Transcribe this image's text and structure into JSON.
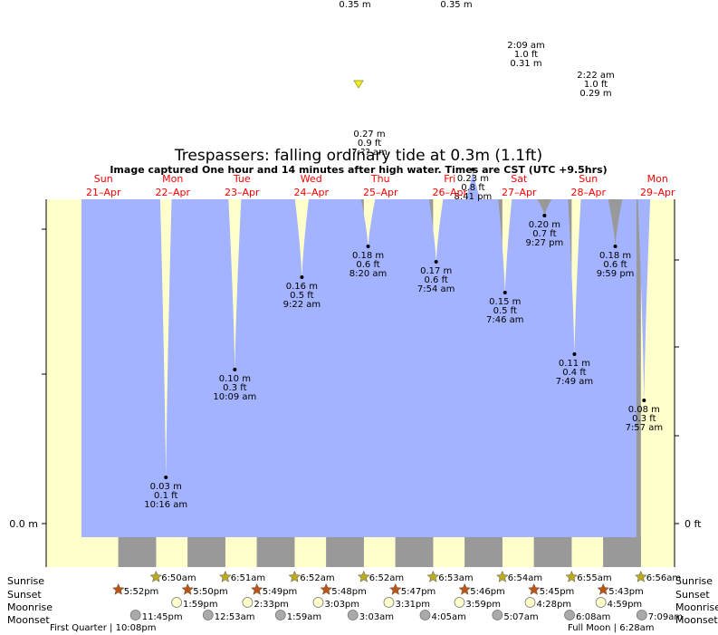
{
  "title": "Trespassers: falling  ordinary tide at 0.3m (1.1ft)",
  "subtitle": "Image captured One hour and 14 minutes after high water. Times are CST (UTC +9.5hrs)",
  "colors": {
    "water": "#a3b3ff",
    "day": "#ffffcc",
    "night": "#999999",
    "day_label": "#ff0000",
    "sun_star": "#bbaa22",
    "sunset_star": "#bb5511",
    "moonrise_disc": "#ffffcc",
    "moonset_disc": "#aaaaaa"
  },
  "chart_data": {
    "type": "area",
    "days": [
      {
        "dow": "Sun",
        "date": "21–Apr"
      },
      {
        "dow": "Mon",
        "date": "22–Apr"
      },
      {
        "dow": "Tue",
        "date": "23–Apr"
      },
      {
        "dow": "Wed",
        "date": "24–Apr"
      },
      {
        "dow": "Thu",
        "date": "25–Apr"
      },
      {
        "dow": "Fri",
        "date": "26–Apr"
      },
      {
        "dow": "Sat",
        "date": "27–Apr"
      },
      {
        "dow": "Sun",
        "date": "28–Apr"
      },
      {
        "dow": "Mon",
        "date": "29–Apr"
      }
    ],
    "y_left_label": "0.0 m",
    "y_right_label": "0 ft",
    "low_tides": [
      {
        "day": 1,
        "time_h": 10.27,
        "m": 0.03,
        "m_label": "0.03 m",
        "ft_label": "0.1 ft",
        "time_label": "10:16 am"
      },
      {
        "day": 2,
        "time_h": 10.15,
        "m": 0.1,
        "m_label": "0.10 m",
        "ft_label": "0.3 ft",
        "time_label": "10:09 am"
      },
      {
        "day": 3,
        "time_h": 9.37,
        "m": 0.16,
        "m_label": "0.16 m",
        "ft_label": "0.5 ft",
        "time_label": "9:22 am"
      },
      {
        "day": 4,
        "time_h": 8.33,
        "m": 0.18,
        "m_label": "0.18 m",
        "ft_label": "0.6 ft",
        "time_label": "8:20 am"
      },
      {
        "day": 5,
        "time_h": 7.9,
        "m": 0.17,
        "m_label": "0.17 m",
        "ft_label": "0.6 ft",
        "time_label": "7:54 am"
      },
      {
        "day": 5,
        "time_h": 20.68,
        "m": 0.23,
        "m_label": "0.23 m",
        "ft_label": "0.8 ft",
        "time_label": "8:41 pm"
      },
      {
        "day": 6,
        "time_h": 7.77,
        "m": 0.15,
        "m_label": "0.15 m",
        "ft_label": "0.5 ft",
        "time_label": "7:46 am"
      },
      {
        "day": 6,
        "time_h": 21.45,
        "m": 0.2,
        "m_label": "0.20 m",
        "ft_label": "0.7 ft",
        "time_label": "9:27 pm"
      },
      {
        "day": 7,
        "time_h": 7.82,
        "m": 0.11,
        "m_label": "0.11 m",
        "ft_label": "0.4 ft",
        "time_label": "7:49 am"
      },
      {
        "day": 7,
        "time_h": 21.98,
        "m": 0.18,
        "m_label": "0.18 m",
        "ft_label": "0.6 ft",
        "time_label": "9:59 pm"
      },
      {
        "day": 8,
        "time_h": 7.95,
        "m": 0.08,
        "m_label": "0.08 m",
        "ft_label": "0.3 ft",
        "time_label": "7:57 am"
      }
    ],
    "offchart_labels": [
      {
        "text": "0.35 m"
      },
      {
        "text": "0.35 m"
      },
      {
        "lines": [
          "2:09 am",
          "1.0 ft",
          "0.31 m"
        ]
      },
      {
        "lines": [
          "2:22 am",
          "1.0 ft",
          "0.29 m"
        ]
      },
      {
        "lines": [
          "0.27 m",
          "0.9 ft",
          "7:?? am"
        ]
      }
    ],
    "sun_moon": {
      "sunrise": [
        "6:50am",
        "6:51am",
        "6:52am",
        "6:52am",
        "6:53am",
        "6:54am",
        "6:55am",
        "6:56am"
      ],
      "sunset": [
        "5:52pm",
        "5:50pm",
        "5:49pm",
        "5:48pm",
        "5:47pm",
        "5:46pm",
        "5:45pm",
        "5:43pm"
      ],
      "moonrise": [
        "1:59pm",
        "2:33pm",
        "3:03pm",
        "3:31pm",
        "3:59pm",
        "4:28pm",
        "4:59pm"
      ],
      "moonset": [
        "11:45pm",
        "12:53am",
        "1:59am",
        "3:03am",
        "4:05am",
        "5:07am",
        "6:08am",
        "7:09am"
      ]
    },
    "row_labels": {
      "sunrise": "Sunrise",
      "sunset": "Sunset",
      "moonrise": "Moonrise",
      "moonset": "Moonset"
    },
    "phases": [
      {
        "text": "First Quarter | 10:08pm"
      },
      {
        "text": "Full Moon | 6:28am"
      }
    ]
  }
}
